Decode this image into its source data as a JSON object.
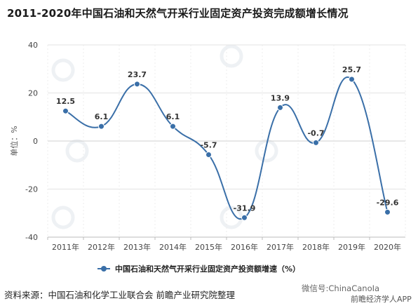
{
  "title": "2011-2020年中国石油和天然气开采行业固定资产投资完成额增长情况",
  "source": "资料来源：中国石油和化学工业联合会 前瞻产业研究院整理",
  "app_tag": "前瞻经济学人APP",
  "wechat_tag": "微信号:ChinaCanoIa",
  "chart_data": {
    "type": "line",
    "categories": [
      "2011年",
      "2012年",
      "2013年",
      "2014年",
      "2015年",
      "2016年",
      "2017年",
      "2018年",
      "2019年",
      "2020年"
    ],
    "series": [
      {
        "name": "中国石油和天然气开采行业固定资产投资额增速（%）",
        "values": [
          12.5,
          6.1,
          23.7,
          6.1,
          -5.7,
          -31.9,
          13.9,
          -0.7,
          25.7,
          -29.6
        ],
        "labels": [
          "12.5",
          "6.1",
          "23.7",
          "6.1",
          "-5.7",
          "-31.9",
          "13.9",
          "-0.7",
          "25.7",
          "-29.6"
        ]
      }
    ],
    "ylabel": "单位：%",
    "ylim": [
      -40,
      40
    ],
    "yticks": [
      "40",
      "20",
      "0",
      "-20",
      "-40"
    ],
    "ytick_values": [
      40,
      20,
      0,
      -20,
      -40
    ],
    "grid": true,
    "legend_position": "bottom",
    "line_color": "#3a6fa8",
    "grid_color": "#e3e3e3"
  }
}
